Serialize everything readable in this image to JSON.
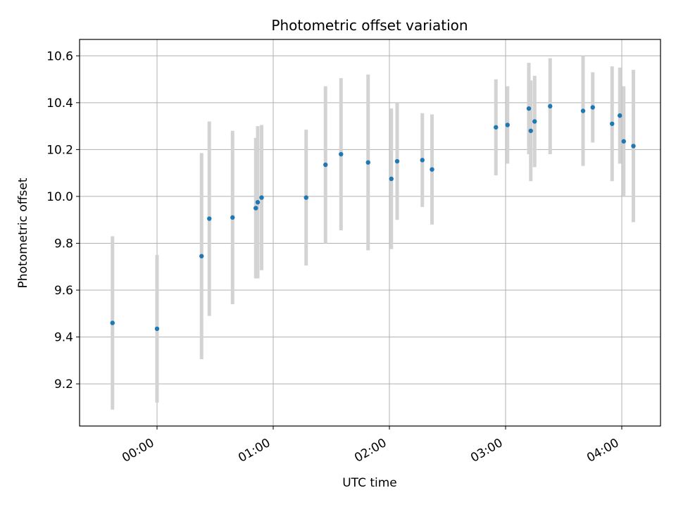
{
  "chart_data": {
    "type": "scatter",
    "title": "Photometric offset variation",
    "xlabel": "UTC time",
    "ylabel": "Photometric offset",
    "xlim": [
      "-00:40",
      "04:20"
    ],
    "ylim": [
      9.02,
      10.67
    ],
    "grid": true,
    "x_ticks": [
      "00:00",
      "01:00",
      "02:00",
      "03:00",
      "04:00"
    ],
    "y_ticks": [
      9.2,
      9.4,
      9.6,
      9.8,
      10.0,
      10.2,
      10.4,
      10.6
    ],
    "series": [
      {
        "color": "#1f77b4",
        "errorbar_color": "#d3d3d3",
        "points": [
          {
            "x": "-00:23",
            "y": 9.46,
            "yerr": 0.37
          },
          {
            "x": "00:00",
            "y": 9.435,
            "yerr": 0.315
          },
          {
            "x": "00:23",
            "y": 9.745,
            "yerr": 0.44
          },
          {
            "x": "00:27",
            "y": 9.905,
            "yerr": 0.415
          },
          {
            "x": "00:39",
            "y": 9.91,
            "yerr": 0.37
          },
          {
            "x": "00:51",
            "y": 9.95,
            "yerr": 0.3
          },
          {
            "x": "00:52",
            "y": 9.975,
            "yerr": 0.325
          },
          {
            "x": "00:54",
            "y": 9.995,
            "yerr": 0.31
          },
          {
            "x": "01:17",
            "y": 9.995,
            "yerr": 0.29
          },
          {
            "x": "01:27",
            "y": 10.135,
            "yerr": 0.335
          },
          {
            "x": "01:35",
            "y": 10.18,
            "yerr": 0.325
          },
          {
            "x": "01:49",
            "y": 10.145,
            "yerr": 0.375
          },
          {
            "x": "02:01",
            "y": 10.075,
            "yerr": 0.3
          },
          {
            "x": "02:04",
            "y": 10.15,
            "yerr": 0.25
          },
          {
            "x": "02:17",
            "y": 10.155,
            "yerr": 0.2
          },
          {
            "x": "02:22",
            "y": 10.115,
            "yerr": 0.235
          },
          {
            "x": "02:55",
            "y": 10.295,
            "yerr": 0.205
          },
          {
            "x": "03:01",
            "y": 10.305,
            "yerr": 0.165
          },
          {
            "x": "03:12",
            "y": 10.375,
            "yerr": 0.195
          },
          {
            "x": "03:13",
            "y": 10.28,
            "yerr": 0.215
          },
          {
            "x": "03:15",
            "y": 10.32,
            "yerr": 0.195
          },
          {
            "x": "03:23",
            "y": 10.385,
            "yerr": 0.205
          },
          {
            "x": "03:40",
            "y": 10.365,
            "yerr": 0.235
          },
          {
            "x": "03:45",
            "y": 10.38,
            "yerr": 0.15
          },
          {
            "x": "03:55",
            "y": 10.31,
            "yerr": 0.245
          },
          {
            "x": "03:59",
            "y": 10.345,
            "yerr": 0.205
          },
          {
            "x": "04:01",
            "y": 10.235,
            "yerr": 0.235
          },
          {
            "x": "04:06",
            "y": 10.215,
            "yerr": 0.325
          }
        ]
      }
    ]
  }
}
